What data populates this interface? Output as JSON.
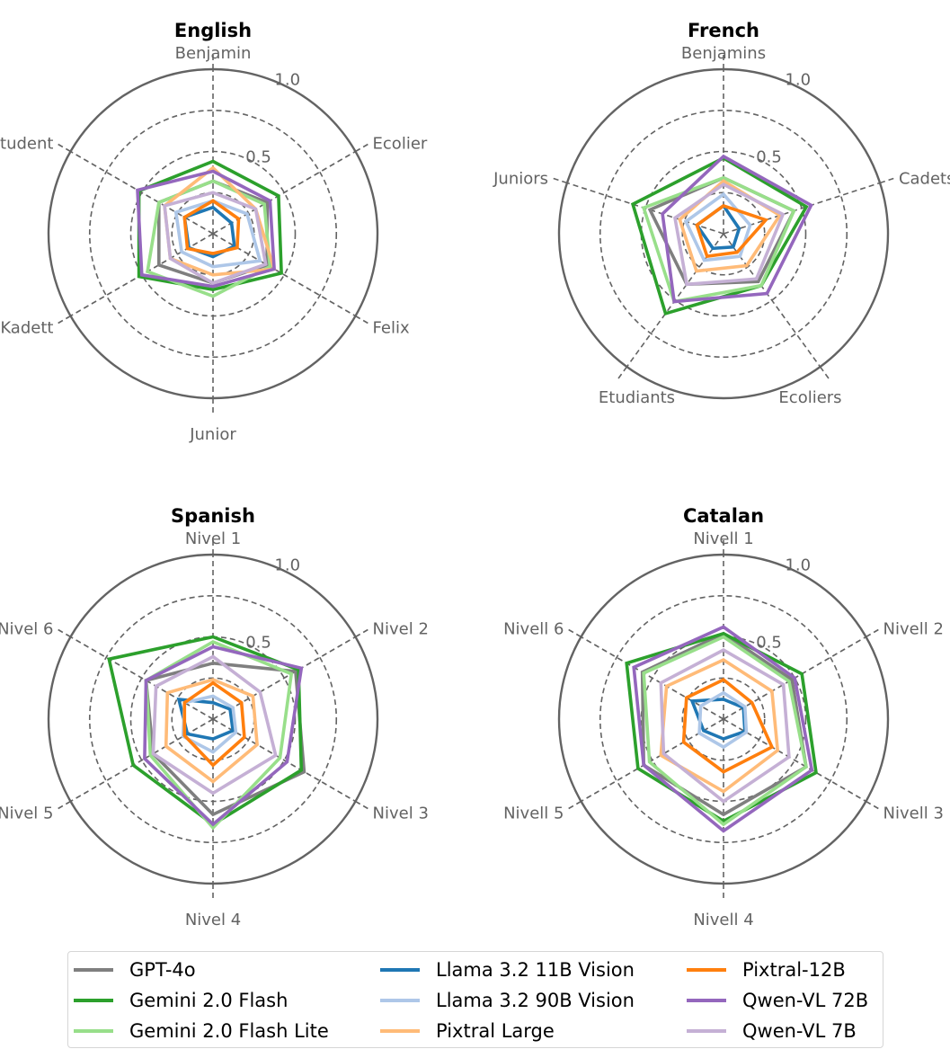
{
  "chart_data": [
    {
      "type": "radar",
      "title": "English",
      "axes": [
        "Benjamin",
        "Ecolier",
        "Felix",
        "Junior",
        "Kadett",
        "Student"
      ],
      "rlim": [
        0,
        1.0
      ],
      "rticks": [
        0.5,
        1.0
      ],
      "rtick_labels": [
        "0.5",
        "1.0"
      ],
      "grid_circles": [
        0.25,
        0.5,
        0.75
      ],
      "series": [
        {
          "name": "GPT-4o",
          "values": [
            0.32,
            0.38,
            0.38,
            0.3,
            0.38,
            0.38
          ]
        },
        {
          "name": "Gemini 2.0 Flash",
          "values": [
            0.44,
            0.46,
            0.48,
            0.34,
            0.52,
            0.52
          ]
        },
        {
          "name": "Gemini 2.0 Flash Lite",
          "values": [
            0.32,
            0.36,
            0.4,
            0.38,
            0.46,
            0.38
          ]
        },
        {
          "name": "Llama 3.2 11B Vision",
          "values": [
            0.16,
            0.13,
            0.15,
            0.14,
            0.17,
            0.2
          ]
        },
        {
          "name": "Llama 3.2 90B Vision",
          "values": [
            0.2,
            0.24,
            0.33,
            0.2,
            0.22,
            0.26
          ]
        },
        {
          "name": "Pixtral Large",
          "values": [
            0.4,
            0.3,
            0.43,
            0.25,
            0.3,
            0.34
          ]
        },
        {
          "name": "Pixtral-12B",
          "values": [
            0.2,
            0.18,
            0.17,
            0.12,
            0.18,
            0.2
          ]
        },
        {
          "name": "Qwen-VL 72B",
          "values": [
            0.38,
            0.4,
            0.43,
            0.32,
            0.5,
            0.53
          ]
        },
        {
          "name": "Qwen-VL 7B",
          "values": [
            0.25,
            0.3,
            0.37,
            0.3,
            0.3,
            0.34
          ]
        }
      ]
    },
    {
      "type": "radar",
      "title": "French",
      "axes": [
        "Benjamins",
        "Cadets",
        "Ecoliers",
        "Etudiants",
        "Juniors"
      ],
      "rlim": [
        0,
        1.0
      ],
      "rticks": [
        0.5,
        1.0
      ],
      "rtick_labels": [
        "0.5",
        "1.0"
      ],
      "grid_circles": [
        0.25,
        0.5,
        0.75
      ],
      "series": [
        {
          "name": "GPT-4o",
          "values": [
            0.34,
            0.45,
            0.36,
            0.38,
            0.47
          ]
        },
        {
          "name": "Gemini 2.0 Flash",
          "values": [
            0.46,
            0.53,
            0.39,
            0.6,
            0.58
          ]
        },
        {
          "name": "Gemini 2.0 Flash Lite",
          "values": [
            0.34,
            0.45,
            0.39,
            0.51,
            0.51
          ]
        },
        {
          "name": "Llama 3.2 11B Vision",
          "values": [
            0.17,
            0.1,
            0.1,
            0.11,
            0.17
          ]
        },
        {
          "name": "Llama 3.2 90B Vision",
          "values": [
            0.24,
            0.17,
            0.17,
            0.2,
            0.24
          ]
        },
        {
          "name": "Pixtral Large",
          "values": [
            0.32,
            0.36,
            0.24,
            0.28,
            0.28
          ]
        },
        {
          "name": "Pixtral-12B",
          "values": [
            0.17,
            0.27,
            0.14,
            0.17,
            0.17
          ]
        },
        {
          "name": "Qwen-VL 72B",
          "values": [
            0.47,
            0.56,
            0.45,
            0.51,
            0.39
          ]
        },
        {
          "name": "Qwen-VL 7B",
          "values": [
            0.3,
            0.38,
            0.34,
            0.38,
            0.31
          ]
        }
      ]
    },
    {
      "type": "radar",
      "title": "Spanish",
      "axes": [
        "Nivel 1",
        "Nivel 2",
        "Nivel 3",
        "Nivel 4",
        "Nivel 5",
        "Nivel 6"
      ],
      "rlim": [
        0,
        1.0
      ],
      "rticks": [
        0.5,
        1.0
      ],
      "rtick_labels": [
        "0.5",
        "1.0"
      ],
      "grid_circles": [
        0.25,
        0.5,
        0.75
      ],
      "series": [
        {
          "name": "GPT-4o",
          "values": [
            0.34,
            0.58,
            0.64,
            0.58,
            0.42,
            0.47
          ]
        },
        {
          "name": "Gemini 2.0 Flash",
          "values": [
            0.5,
            0.6,
            0.62,
            0.64,
            0.56,
            0.73
          ]
        },
        {
          "name": "Gemini 2.0 Flash Lite",
          "values": [
            0.47,
            0.55,
            0.47,
            0.66,
            0.44,
            0.47
          ]
        },
        {
          "name": "Llama 3.2 11B Vision",
          "values": [
            0.1,
            0.12,
            0.14,
            0.12,
            0.18,
            0.24
          ]
        },
        {
          "name": "Llama 3.2 90B Vision",
          "values": [
            0.14,
            0.14,
            0.16,
            0.2,
            0.21,
            0.2
          ]
        },
        {
          "name": "Pixtral Large",
          "values": [
            0.24,
            0.28,
            0.31,
            0.38,
            0.33,
            0.32
          ]
        },
        {
          "name": "Pixtral-12B",
          "values": [
            0.22,
            0.2,
            0.22,
            0.28,
            0.2,
            0.2
          ]
        },
        {
          "name": "Qwen-VL 72B",
          "values": [
            0.44,
            0.62,
            0.52,
            0.64,
            0.48,
            0.47
          ]
        },
        {
          "name": "Qwen-VL 7B",
          "values": [
            0.38,
            0.33,
            0.44,
            0.45,
            0.42,
            0.4
          ]
        }
      ]
    },
    {
      "type": "radar",
      "title": "Catalan",
      "axes": [
        "Nivell 1",
        "Nivell 2",
        "Nivell 3",
        "Nivell 4",
        "Nivell 5",
        "Nivell 6"
      ],
      "rlim": [
        0,
        1.0
      ],
      "rticks": [
        0.5,
        1.0
      ],
      "rtick_labels": [
        "0.5",
        "1.0"
      ],
      "grid_circles": [
        0.25,
        0.5,
        0.75
      ],
      "series": [
        {
          "name": "GPT-4o",
          "values": [
            0.52,
            0.48,
            0.58,
            0.58,
            0.56,
            0.57
          ]
        },
        {
          "name": "Gemini 2.0 Flash",
          "values": [
            0.52,
            0.55,
            0.65,
            0.62,
            0.6,
            0.68
          ]
        },
        {
          "name": "Gemini 2.0 Flash Lite",
          "values": [
            0.5,
            0.46,
            0.58,
            0.64,
            0.52,
            0.56
          ]
        },
        {
          "name": "Llama 3.2 11B Vision",
          "values": [
            0.12,
            0.14,
            0.15,
            0.12,
            0.14,
            0.22
          ]
        },
        {
          "name": "Llama 3.2 90B Vision",
          "values": [
            0.16,
            0.15,
            0.16,
            0.17,
            0.17,
            0.16
          ]
        },
        {
          "name": "Pixtral Large",
          "values": [
            0.36,
            0.34,
            0.38,
            0.44,
            0.44,
            0.4
          ]
        },
        {
          "name": "Pixtral-12B",
          "values": [
            0.24,
            0.2,
            0.34,
            0.32,
            0.28,
            0.26
          ]
        },
        {
          "name": "Qwen-VL 72B",
          "values": [
            0.56,
            0.5,
            0.62,
            0.68,
            0.56,
            0.63
          ]
        },
        {
          "name": "Qwen-VL 7B",
          "values": [
            0.42,
            0.42,
            0.46,
            0.5,
            0.42,
            0.44
          ]
        }
      ]
    }
  ],
  "colors": {
    "GPT-4o": "#7f7f7f",
    "Gemini 2.0 Flash": "#2ca02c",
    "Gemini 2.0 Flash Lite": "#98df8a",
    "Llama 3.2 11B Vision": "#1f77b4",
    "Llama 3.2 90B Vision": "#aec7e8",
    "Pixtral Large": "#ffbb78",
    "Pixtral-12B": "#ff7f0e",
    "Qwen-VL 72B": "#9467bd",
    "Qwen-VL 7B": "#c5b0d5",
    "frame": "#636363",
    "tick_text": "#636363"
  },
  "legend": {
    "location": "bottom-center",
    "columns": 3,
    "items": [
      {
        "label": "GPT-4o"
      },
      {
        "label": "Gemini 2.0 Flash"
      },
      {
        "label": "Gemini 2.0 Flash Lite"
      },
      {
        "label": "Llama 3.2 11B Vision"
      },
      {
        "label": "Llama 3.2 90B Vision"
      },
      {
        "label": "Pixtral Large"
      },
      {
        "label": "Pixtral-12B"
      },
      {
        "label": "Qwen-VL 72B"
      },
      {
        "label": "Qwen-VL 7B"
      }
    ]
  }
}
